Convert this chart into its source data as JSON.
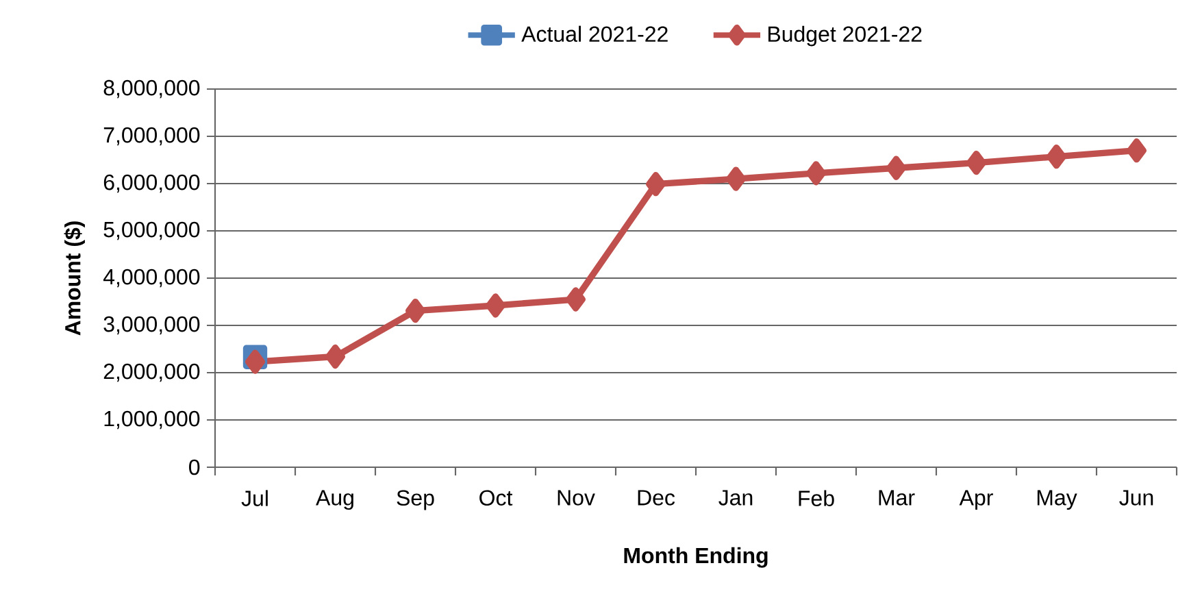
{
  "chart_data": {
    "type": "line",
    "xlabel": "Month Ending",
    "ylabel": "Amount ($)",
    "categories": [
      "Jul",
      "Aug",
      "Sep",
      "Oct",
      "Nov",
      "Dec",
      "Jan",
      "Feb",
      "Mar",
      "Apr",
      "May",
      "Jun"
    ],
    "series": [
      {
        "name": "Actual 2021-22",
        "color": "#4f81bd",
        "marker": "square",
        "values": [
          2330000,
          null,
          null,
          null,
          null,
          null,
          null,
          null,
          null,
          null,
          null,
          null
        ]
      },
      {
        "name": "Budget 2021-22",
        "color": "#c0504d",
        "marker": "diamond",
        "values": [
          2230000,
          2340000,
          3310000,
          3420000,
          3550000,
          5990000,
          6100000,
          6220000,
          6330000,
          6440000,
          6570000,
          6700000
        ]
      }
    ],
    "ylim": [
      0,
      8000000
    ],
    "yticks": [
      {
        "value": 0,
        "label": "0"
      },
      {
        "value": 1000000,
        "label": "1,000,000"
      },
      {
        "value": 2000000,
        "label": "2,000,000"
      },
      {
        "value": 3000000,
        "label": "3,000,000"
      },
      {
        "value": 4000000,
        "label": "4,000,000"
      },
      {
        "value": 5000000,
        "label": "5,000,000"
      },
      {
        "value": 6000000,
        "label": "6,000,000"
      },
      {
        "value": 7000000,
        "label": "7,000,000"
      },
      {
        "value": 8000000,
        "label": "8,000,000"
      }
    ],
    "grid": "y",
    "legend": "top"
  }
}
